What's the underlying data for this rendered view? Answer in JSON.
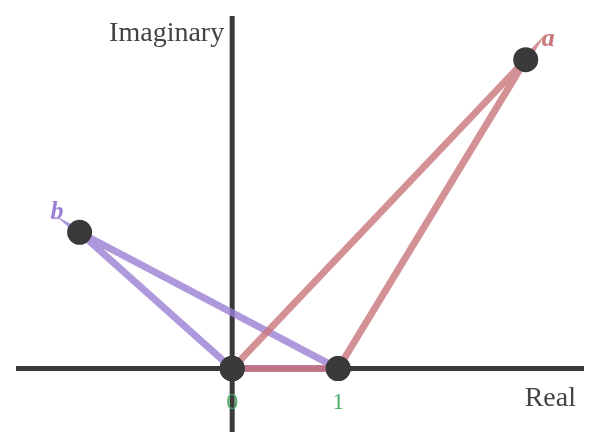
{
  "chart_data": {
    "type": "scatter",
    "x_label": "Real",
    "y_label": "Imaginary",
    "xlim": [
      -2.04,
      3.32
    ],
    "ylim": [
      -0.61,
      3.39
    ],
    "xticks": [
      0,
      1
    ],
    "tick_labels": "x",
    "grid": false,
    "series": [
      {
        "name": "a",
        "color": "#c9767a",
        "x": [
          0,
          2.77,
          1
        ],
        "values": [
          0,
          2.97,
          0
        ]
      },
      {
        "name": "b",
        "color": "#9b7fd4",
        "x": [
          0,
          -1.44,
          1
        ],
        "values": [
          0,
          1.31,
          0
        ]
      }
    ]
  }
}
